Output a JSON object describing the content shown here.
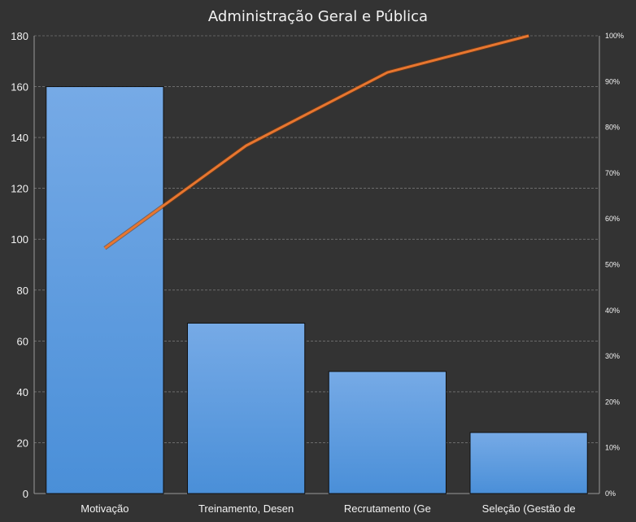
{
  "chart_data": {
    "type": "bar",
    "title": "Administração Geral e Pública",
    "categories": [
      "Motivação",
      "Treinamento,  Desen",
      "Recrutamento  (Ge",
      "Seleção (Gestão de"
    ],
    "series": [
      {
        "type": "bar",
        "axis": "left",
        "values": [
          160,
          67,
          48,
          24
        ]
      },
      {
        "type": "line",
        "axis": "right",
        "values": [
          0.536,
          0.76,
          0.92,
          1.0
        ]
      }
    ],
    "ylim": [
      0,
      180
    ],
    "yticks": [
      "0",
      "20",
      "40",
      "60",
      "80",
      "100",
      "120",
      "140",
      "160",
      "180"
    ],
    "y2lim": [
      0,
      1
    ],
    "y2ticks": [
      "0%",
      "10%",
      "20%",
      "30%",
      "40%",
      "50%",
      "60%",
      "70%",
      "80%",
      "90%",
      "100%"
    ],
    "grid": true,
    "colors": {
      "bar": "#4a8fd8",
      "bar_top": "#76aae6",
      "line": "#e8762f",
      "background": "#333333",
      "grid": "#d9d9d9"
    }
  }
}
